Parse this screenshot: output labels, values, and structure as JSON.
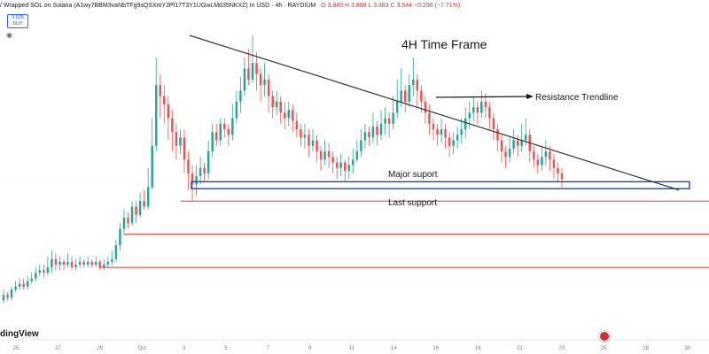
{
  "header": {
    "symbol": "/ Wrapped SOL on Solana (A1wy7BBM3vaNbTFg9sQSXmYJPf17T3Y1UGwLMd35NKXZ) In USD · 4h · RAYDIUM",
    "ohlc": "O 3.840  H 3.888  L 3.383  C 3.544  −0.296 (−7.71%)",
    "buy_price": "3.535",
    "buy_label": "BUY"
  },
  "brand": "dingView",
  "annotations": {
    "title": "4H Time Frame",
    "resistance": "Resistance Trendline",
    "major_support": "Major suport",
    "last_support": "Last support"
  },
  "colors": {
    "up": "#26a69a",
    "down": "#ef5350",
    "trendline": "#333333",
    "support_box": "#1e40c8",
    "support_lines": "#e53935"
  },
  "chart_data": {
    "type": "candlestick",
    "x_tick_labels": [
      "25",
      "27",
      "29",
      "Oct",
      "3",
      "5",
      "7",
      "9",
      "11",
      "14",
      "16",
      "18",
      "21",
      "23",
      "25",
      "28",
      "30"
    ],
    "ylim": [
      0,
      100
    ],
    "resistance_trendline": {
      "from": [
        0.2675,
        100
      ],
      "to": [
        0.9575,
        44
      ]
    },
    "support_box": {
      "from_x": 0.27,
      "to_x": 0.9725,
      "y_top": 47,
      "y_bottom": 44.5
    },
    "support_lines": [
      {
        "from_x": 0.255,
        "y": 40
      },
      {
        "from_x": 0.175,
        "y": 28
      },
      {
        "from_x": 0.14,
        "y": 16
      }
    ],
    "candles": [
      [
        4,
        6,
        8,
        3
      ],
      [
        6,
        5,
        7,
        4
      ],
      [
        5,
        8,
        9,
        4
      ],
      [
        8,
        9,
        11,
        7
      ],
      [
        9,
        10,
        12,
        8
      ],
      [
        10,
        9,
        12,
        8
      ],
      [
        9,
        11,
        13,
        8
      ],
      [
        11,
        12,
        14,
        10
      ],
      [
        12,
        14,
        16,
        11
      ],
      [
        14,
        15,
        17,
        13
      ],
      [
        15,
        14,
        17,
        12
      ],
      [
        14,
        16,
        20,
        13
      ],
      [
        16,
        19,
        22,
        14
      ],
      [
        19,
        17,
        21,
        15
      ],
      [
        17,
        18,
        20,
        15
      ],
      [
        18,
        17,
        19,
        15
      ],
      [
        17,
        18,
        21,
        16
      ],
      [
        18,
        16,
        20,
        15
      ],
      [
        16,
        17,
        19,
        15
      ],
      [
        17,
        18,
        20,
        16
      ],
      [
        18,
        17,
        19,
        16
      ],
      [
        17,
        18,
        20,
        16
      ],
      [
        18,
        17,
        19,
        16
      ],
      [
        17,
        18,
        20,
        16
      ],
      [
        18,
        16,
        19,
        15
      ],
      [
        16,
        17,
        19,
        15
      ],
      [
        17,
        18,
        20,
        16
      ],
      [
        18,
        19,
        22,
        17
      ],
      [
        19,
        24,
        26,
        18
      ],
      [
        24,
        30,
        32,
        22
      ],
      [
        30,
        34,
        37,
        28
      ],
      [
        34,
        32,
        36,
        30
      ],
      [
        32,
        38,
        40,
        31
      ],
      [
        38,
        35,
        40,
        32
      ],
      [
        35,
        40,
        43,
        34
      ],
      [
        40,
        38,
        44,
        37
      ],
      [
        38,
        45,
        52,
        37
      ],
      [
        45,
        60,
        70,
        44
      ],
      [
        60,
        82,
        92,
        58
      ],
      [
        82,
        78,
        86,
        70
      ],
      [
        78,
        75,
        82,
        68
      ],
      [
        75,
        70,
        78,
        62
      ],
      [
        70,
        65,
        73,
        58
      ],
      [
        65,
        60,
        68,
        55
      ],
      [
        60,
        63,
        66,
        57
      ],
      [
        63,
        55,
        66,
        50
      ],
      [
        55,
        50,
        58,
        44
      ],
      [
        50,
        46,
        53,
        40
      ],
      [
        46,
        49,
        53,
        42
      ],
      [
        49,
        52,
        56,
        46
      ],
      [
        52,
        50,
        54,
        47
      ],
      [
        50,
        58,
        62,
        48
      ],
      [
        58,
        65,
        68,
        56
      ],
      [
        65,
        62,
        68,
        60
      ],
      [
        62,
        68,
        70,
        60
      ],
      [
        68,
        66,
        70,
        63
      ],
      [
        66,
        64,
        68,
        60
      ],
      [
        64,
        70,
        75,
        62
      ],
      [
        70,
        76,
        80,
        68
      ],
      [
        76,
        80,
        85,
        72
      ],
      [
        80,
        88,
        92,
        78
      ],
      [
        88,
        84,
        95,
        82
      ],
      [
        84,
        90,
        100,
        83
      ],
      [
        90,
        86,
        94,
        80
      ],
      [
        86,
        82,
        88,
        76
      ],
      [
        82,
        84,
        90,
        78
      ],
      [
        84,
        78,
        86,
        72
      ],
      [
        78,
        74,
        80,
        70
      ],
      [
        74,
        76,
        80,
        71
      ],
      [
        76,
        72,
        78,
        68
      ],
      [
        72,
        70,
        76,
        66
      ],
      [
        70,
        73,
        76,
        67
      ],
      [
        73,
        69,
        75,
        65
      ],
      [
        69,
        66,
        72,
        63
      ],
      [
        66,
        63,
        68,
        60
      ],
      [
        63,
        64,
        68,
        59
      ],
      [
        64,
        60,
        66,
        56
      ],
      [
        60,
        62,
        66,
        58
      ],
      [
        62,
        58,
        64,
        54
      ],
      [
        58,
        55,
        60,
        51
      ],
      [
        55,
        58,
        62,
        53
      ],
      [
        58,
        56,
        61,
        52
      ],
      [
        56,
        54,
        58,
        50
      ],
      [
        54,
        52,
        56,
        48
      ],
      [
        52,
        54,
        57,
        49
      ],
      [
        54,
        51,
        55,
        47
      ],
      [
        51,
        53,
        56,
        48
      ],
      [
        53,
        55,
        59,
        50
      ],
      [
        55,
        58,
        62,
        54
      ],
      [
        58,
        62,
        66,
        56
      ],
      [
        62,
        65,
        68,
        59
      ],
      [
        65,
        63,
        67,
        60
      ],
      [
        63,
        67,
        72,
        61
      ],
      [
        67,
        64,
        69,
        60
      ],
      [
        64,
        68,
        73,
        62
      ],
      [
        68,
        70,
        74,
        64
      ],
      [
        70,
        68,
        72,
        63
      ],
      [
        68,
        72,
        78,
        66
      ],
      [
        72,
        76,
        84,
        70
      ],
      [
        76,
        80,
        88,
        74
      ],
      [
        80,
        76,
        82,
        72
      ],
      [
        76,
        82,
        86,
        74
      ],
      [
        82,
        84,
        92,
        78
      ],
      [
        84,
        80,
        86,
        74
      ],
      [
        80,
        76,
        82,
        72
      ],
      [
        76,
        72,
        78,
        68
      ],
      [
        72,
        68,
        75,
        64
      ],
      [
        68,
        66,
        70,
        62
      ],
      [
        66,
        64,
        68,
        60
      ],
      [
        64,
        66,
        70,
        61
      ],
      [
        66,
        63,
        68,
        59
      ],
      [
        63,
        60,
        65,
        56
      ],
      [
        60,
        62,
        65,
        57
      ],
      [
        62,
        64,
        67,
        59
      ],
      [
        64,
        66,
        70,
        61
      ],
      [
        66,
        70,
        74,
        63
      ],
      [
        70,
        72,
        76,
        66
      ],
      [
        72,
        74,
        78,
        69
      ],
      [
        74,
        72,
        76,
        68
      ],
      [
        72,
        76,
        80,
        70
      ],
      [
        76,
        74,
        79,
        70
      ],
      [
        74,
        70,
        76,
        66
      ],
      [
        70,
        66,
        72,
        62
      ],
      [
        66,
        62,
        68,
        58
      ],
      [
        62,
        58,
        64,
        54
      ],
      [
        58,
        56,
        60,
        52
      ],
      [
        56,
        59,
        63,
        54
      ],
      [
        59,
        62,
        66,
        57
      ],
      [
        62,
        60,
        64,
        56
      ],
      [
        60,
        62,
        68,
        58
      ],
      [
        62,
        64,
        70,
        60
      ],
      [
        64,
        58,
        66,
        54
      ],
      [
        58,
        55,
        60,
        52
      ],
      [
        55,
        53,
        57,
        50
      ],
      [
        53,
        56,
        60,
        51
      ],
      [
        56,
        58,
        62,
        53
      ],
      [
        58,
        55,
        60,
        51
      ],
      [
        55,
        52,
        57,
        48
      ],
      [
        52,
        50,
        54,
        47
      ],
      [
        50,
        48,
        52,
        45
      ]
    ]
  }
}
